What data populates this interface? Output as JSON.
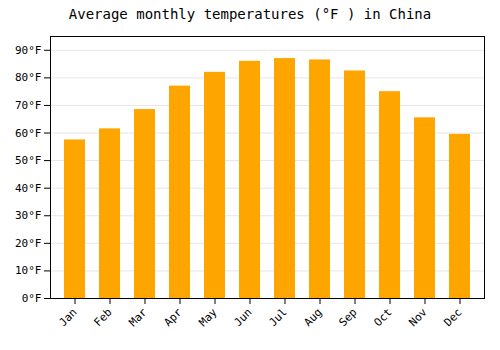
{
  "chart_data": {
    "type": "bar",
    "title": "Average monthly temperatures (°F ) in China",
    "categories": [
      "Jan",
      "Feb",
      "Mar",
      "Apr",
      "May",
      "Jun",
      "Jul",
      "Aug",
      "Sep",
      "Oct",
      "Nov",
      "Dec"
    ],
    "values": [
      57.5,
      61.5,
      68.5,
      77.0,
      82.0,
      86.0,
      87.0,
      86.5,
      82.5,
      75.0,
      65.5,
      59.5
    ],
    "color": "#FFA500",
    "ylim": [
      0,
      95
    ],
    "yticks": [
      {
        "value": 0,
        "label": "0°F"
      },
      {
        "value": 10,
        "label": "10°F"
      },
      {
        "value": 20,
        "label": "20°F"
      },
      {
        "value": 30,
        "label": "30°F"
      },
      {
        "value": 40,
        "label": "40°F"
      },
      {
        "value": 50,
        "label": "50°F"
      },
      {
        "value": 60,
        "label": "60°F"
      },
      {
        "value": 70,
        "label": "70°F"
      },
      {
        "value": 80,
        "label": "80°F"
      },
      {
        "value": 90,
        "label": "90°F"
      }
    ],
    "grid": true
  }
}
